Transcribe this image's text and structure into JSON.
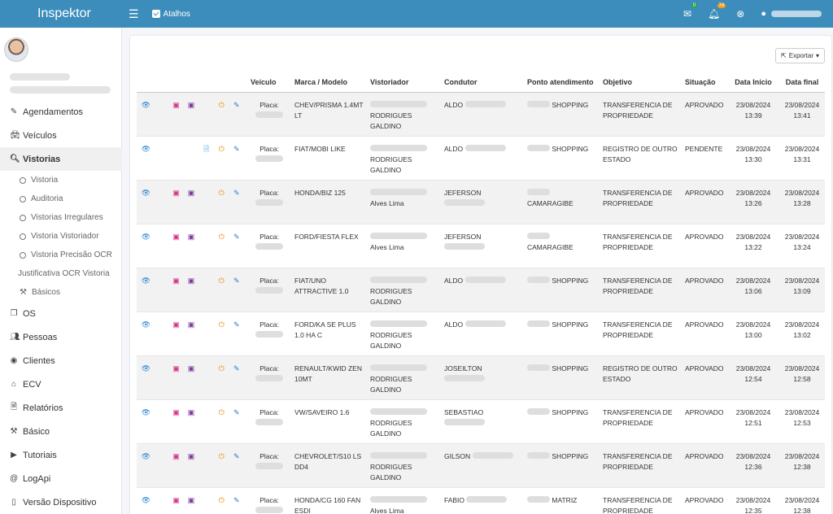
{
  "header": {
    "brand": "Inspektor",
    "atalhos_label": "Atalhos",
    "mail_badge": "0",
    "bell_badge": "74",
    "icons": [
      "menu-icon",
      "check-icon",
      "mail-icon",
      "bell-icon",
      "close-circle-icon",
      "user-icon"
    ],
    "color": "#3c8dbc"
  },
  "sidebar": {
    "items": [
      {
        "label": "Agendamentos",
        "icon": "edit-icon"
      },
      {
        "label": "Veículos",
        "icon": "car-icon"
      },
      {
        "label": "Vistorias",
        "icon": "search-icon"
      }
    ],
    "sub_items": [
      {
        "label": "Vistoria"
      },
      {
        "label": "Auditoria"
      },
      {
        "label": "Vistorias Irregulares"
      },
      {
        "label": "Vistoria Vistoriador"
      },
      {
        "label": "Vistoria Precisão OCR"
      }
    ],
    "extra": {
      "justificativa": "Justificativa OCR Vistoria",
      "basicos": "Básicos"
    },
    "items2": [
      {
        "label": "OS",
        "icon": "copy-icon"
      },
      {
        "label": "Pessoas",
        "icon": "users-icon"
      },
      {
        "label": "Clientes",
        "icon": "user-circle-icon"
      },
      {
        "label": "ECV",
        "icon": "home-icon"
      },
      {
        "label": "Relatórios",
        "icon": "file-icon"
      },
      {
        "label": "Básico",
        "icon": "hammer-icon"
      },
      {
        "label": "Tutoriais",
        "icon": "video-icon"
      },
      {
        "label": "LogApi",
        "icon": "at-icon"
      },
      {
        "label": "Versão Dispositivo",
        "icon": "mobile-icon"
      }
    ]
  },
  "toolbar": {
    "export_label": "Exportar"
  },
  "table": {
    "columns": [
      "Veículo",
      "Marca / Modelo",
      "Vistoriador",
      "Condutor",
      "Ponto atendimento",
      "Objetivo",
      "Situação",
      "Data Início",
      "Data final"
    ],
    "rows": [
      {
        "placa": "Placa:",
        "modelo": "CHEV/PRISMA 1.4MT LT",
        "vistoriador": "RODRIGUES GALDINO",
        "condutor": "ALDO",
        "ponto": "SHOPPING",
        "objetivo": "TRANSFERENCIA DE PROPRIEDADE",
        "situacao": "APROVADO",
        "inicio": "23/08/2024 13:39",
        "final": "23/08/2024 13:41",
        "pdfs": true,
        "doc": false
      },
      {
        "placa": "Placa:",
        "modelo": "FIAT/MOBI LIKE",
        "vistoriador": "RODRIGUES GALDINO",
        "condutor": "ALDO",
        "ponto": "SHOPPING",
        "objetivo": "REGISTRO DE OUTRO ESTADO",
        "situacao": "PENDENTE",
        "inicio": "23/08/2024 13:30",
        "final": "23/08/2024 13:31",
        "pdfs": false,
        "doc": true
      },
      {
        "placa": "Placa:",
        "modelo": "HONDA/BIZ 125",
        "vistoriador": "Alves Lima",
        "condutor": "JEFERSON",
        "ponto": "CAMARAGIBE",
        "objetivo": "TRANSFERENCIA DE PROPRIEDADE",
        "situacao": "APROVADO",
        "inicio": "23/08/2024 13:26",
        "final": "23/08/2024 13:28",
        "pdfs": true,
        "doc": false
      },
      {
        "placa": "Placa:",
        "modelo": "FORD/FIESTA FLEX",
        "vistoriador": "Alves Lima",
        "condutor": "JEFERSON",
        "ponto": "CAMARAGIBE",
        "objetivo": "TRANSFERENCIA DE PROPRIEDADE",
        "situacao": "APROVADO",
        "inicio": "23/08/2024 13:22",
        "final": "23/08/2024 13:24",
        "pdfs": true,
        "doc": false
      },
      {
        "placa": "Placa:",
        "modelo": "FIAT/UNO ATTRACTIVE 1.0",
        "vistoriador": "RODRIGUES GALDINO",
        "condutor": "ALDO",
        "ponto": "SHOPPING",
        "objetivo": "TRANSFERENCIA DE PROPRIEDADE",
        "situacao": "APROVADO",
        "inicio": "23/08/2024 13:06",
        "final": "23/08/2024 13:09",
        "pdfs": true,
        "doc": false
      },
      {
        "placa": "Placa:",
        "modelo": "FORD/KA SE PLUS 1.0 HA C",
        "vistoriador": "RODRIGUES GALDINO",
        "condutor": "ALDO",
        "ponto": "SHOPPING",
        "objetivo": "TRANSFERENCIA DE PROPRIEDADE",
        "situacao": "APROVADO",
        "inicio": "23/08/2024 13:00",
        "final": "23/08/2024 13:02",
        "pdfs": true,
        "doc": false
      },
      {
        "placa": "Placa:",
        "modelo": "RENAULT/KWID ZEN 10MT",
        "vistoriador": "RODRIGUES GALDINO",
        "condutor": "JOSEILTON",
        "ponto": "SHOPPING",
        "objetivo": "REGISTRO DE OUTRO ESTADO",
        "situacao": "APROVADO",
        "inicio": "23/08/2024 12:54",
        "final": "23/08/2024 12:58",
        "pdfs": true,
        "doc": false
      },
      {
        "placa": "Placa:",
        "modelo": "VW/SAVEIRO 1.6",
        "vistoriador": "RODRIGUES GALDINO",
        "condutor": "SEBASTIAO",
        "ponto": "SHOPPING",
        "objetivo": "TRANSFERENCIA DE PROPRIEDADE",
        "situacao": "APROVADO",
        "inicio": "23/08/2024 12:51",
        "final": "23/08/2024 12:53",
        "pdfs": true,
        "doc": false
      },
      {
        "placa": "Placa:",
        "modelo": "CHEVROLET/S10 LS DD4",
        "vistoriador": "RODRIGUES GALDINO",
        "condutor": "GILSON",
        "ponto": "SHOPPING",
        "objetivo": "TRANSFERENCIA DE PROPRIEDADE",
        "situacao": "APROVADO",
        "inicio": "23/08/2024 12:36",
        "final": "23/08/2024 12:38",
        "pdfs": true,
        "doc": false
      },
      {
        "placa": "Placa:",
        "modelo": "HONDA/CG 160 FAN ESDI",
        "vistoriador": "Alves Lima",
        "condutor": "FABIO",
        "ponto": "MATRIZ",
        "objetivo": "TRANSFERENCIA DE PROPRIEDADE",
        "situacao": "APROVADO",
        "inicio": "23/08/2024 12:35",
        "final": "23/08/2024 12:38",
        "pdfs": true,
        "doc": false
      }
    ]
  }
}
